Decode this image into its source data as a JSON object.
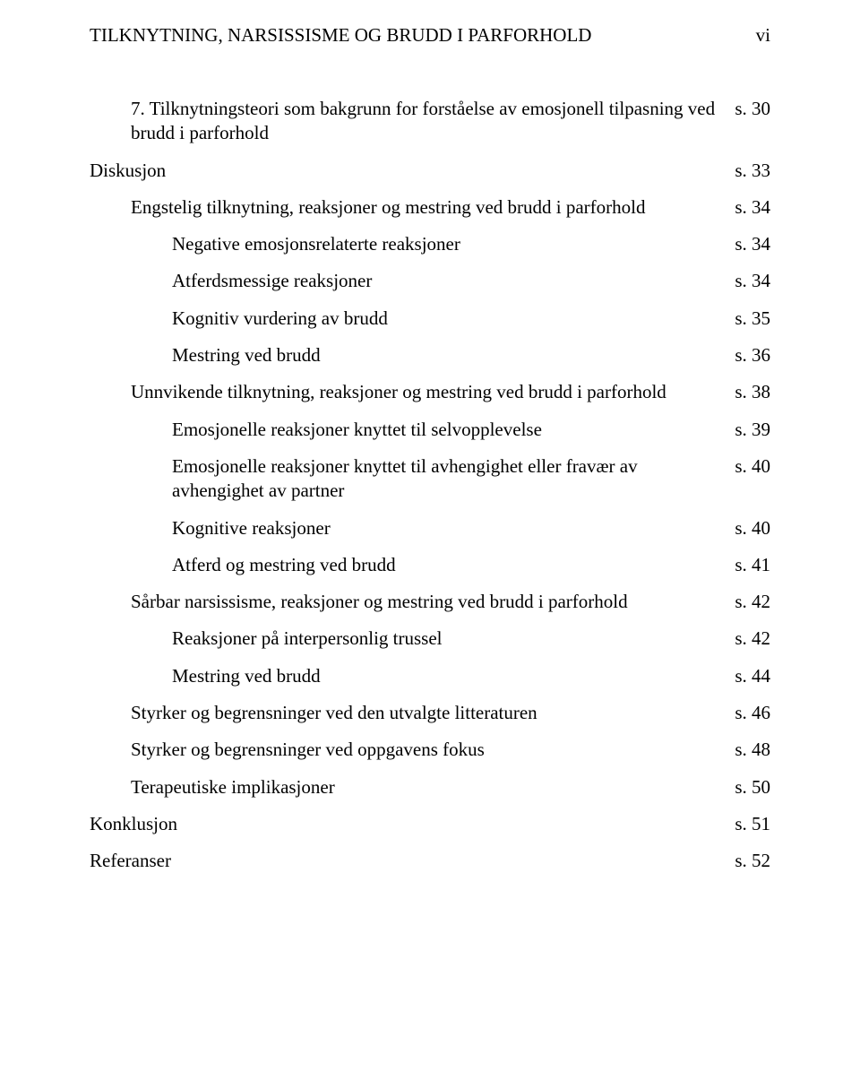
{
  "header": {
    "running_title": "TILKNYTNING, NARSISSISME OG BRUDD I PARFORHOLD",
    "page_numeral": "vi"
  },
  "toc": [
    {
      "level": 1,
      "label": "7. Tilknytningsteori som bakgrunn for forståelse av emosjonell tilpasning ved brudd i parforhold",
      "page": "s. 30"
    },
    {
      "level": 0,
      "label": "Diskusjon",
      "page": "s. 33"
    },
    {
      "level": 1,
      "label": "Engstelig tilknytning, reaksjoner og mestring ved brudd i parforhold",
      "page": "s. 34"
    },
    {
      "level": 2,
      "label": "Negative emosjonsrelaterte reaksjoner",
      "page": "s. 34"
    },
    {
      "level": 2,
      "label": "Atferdsmessige reaksjoner",
      "page": "s. 34"
    },
    {
      "level": 2,
      "label": "Kognitiv vurdering av brudd",
      "page": "s. 35"
    },
    {
      "level": 2,
      "label": "Mestring ved brudd",
      "page": "s. 36"
    },
    {
      "level": 1,
      "label": "Unnvikende tilknytning, reaksjoner og mestring ved brudd i parforhold",
      "page": "s. 38"
    },
    {
      "level": 2,
      "label": "Emosjonelle reaksjoner knyttet til selvopplevelse",
      "page": "s. 39"
    },
    {
      "level": 2,
      "label": "Emosjonelle reaksjoner knyttet til avhengighet eller fravær av avhengighet av partner",
      "page": "s. 40"
    },
    {
      "level": 2,
      "label": "Kognitive reaksjoner",
      "page": "s. 40"
    },
    {
      "level": 2,
      "label": "Atferd og mestring ved brudd",
      "page": "s. 41"
    },
    {
      "level": 1,
      "label": "Sårbar narsissisme, reaksjoner og mestring ved brudd i parforhold",
      "page": "s. 42"
    },
    {
      "level": 2,
      "label": "Reaksjoner på interpersonlig trussel",
      "page": "s. 42"
    },
    {
      "level": 2,
      "label": "Mestring ved brudd",
      "page": "s. 44"
    },
    {
      "level": 1,
      "label": "Styrker og begrensninger ved den utvalgte litteraturen",
      "page": "s. 46"
    },
    {
      "level": 1,
      "label": "Styrker og begrensninger ved oppgavens fokus",
      "page": "s. 48"
    },
    {
      "level": 1,
      "label": "Terapeutiske implikasjoner",
      "page": "s. 50"
    },
    {
      "level": 0,
      "label": "Konklusjon",
      "page": "s. 51"
    },
    {
      "level": 0,
      "label": "Referanser",
      "page": "s. 52"
    }
  ]
}
